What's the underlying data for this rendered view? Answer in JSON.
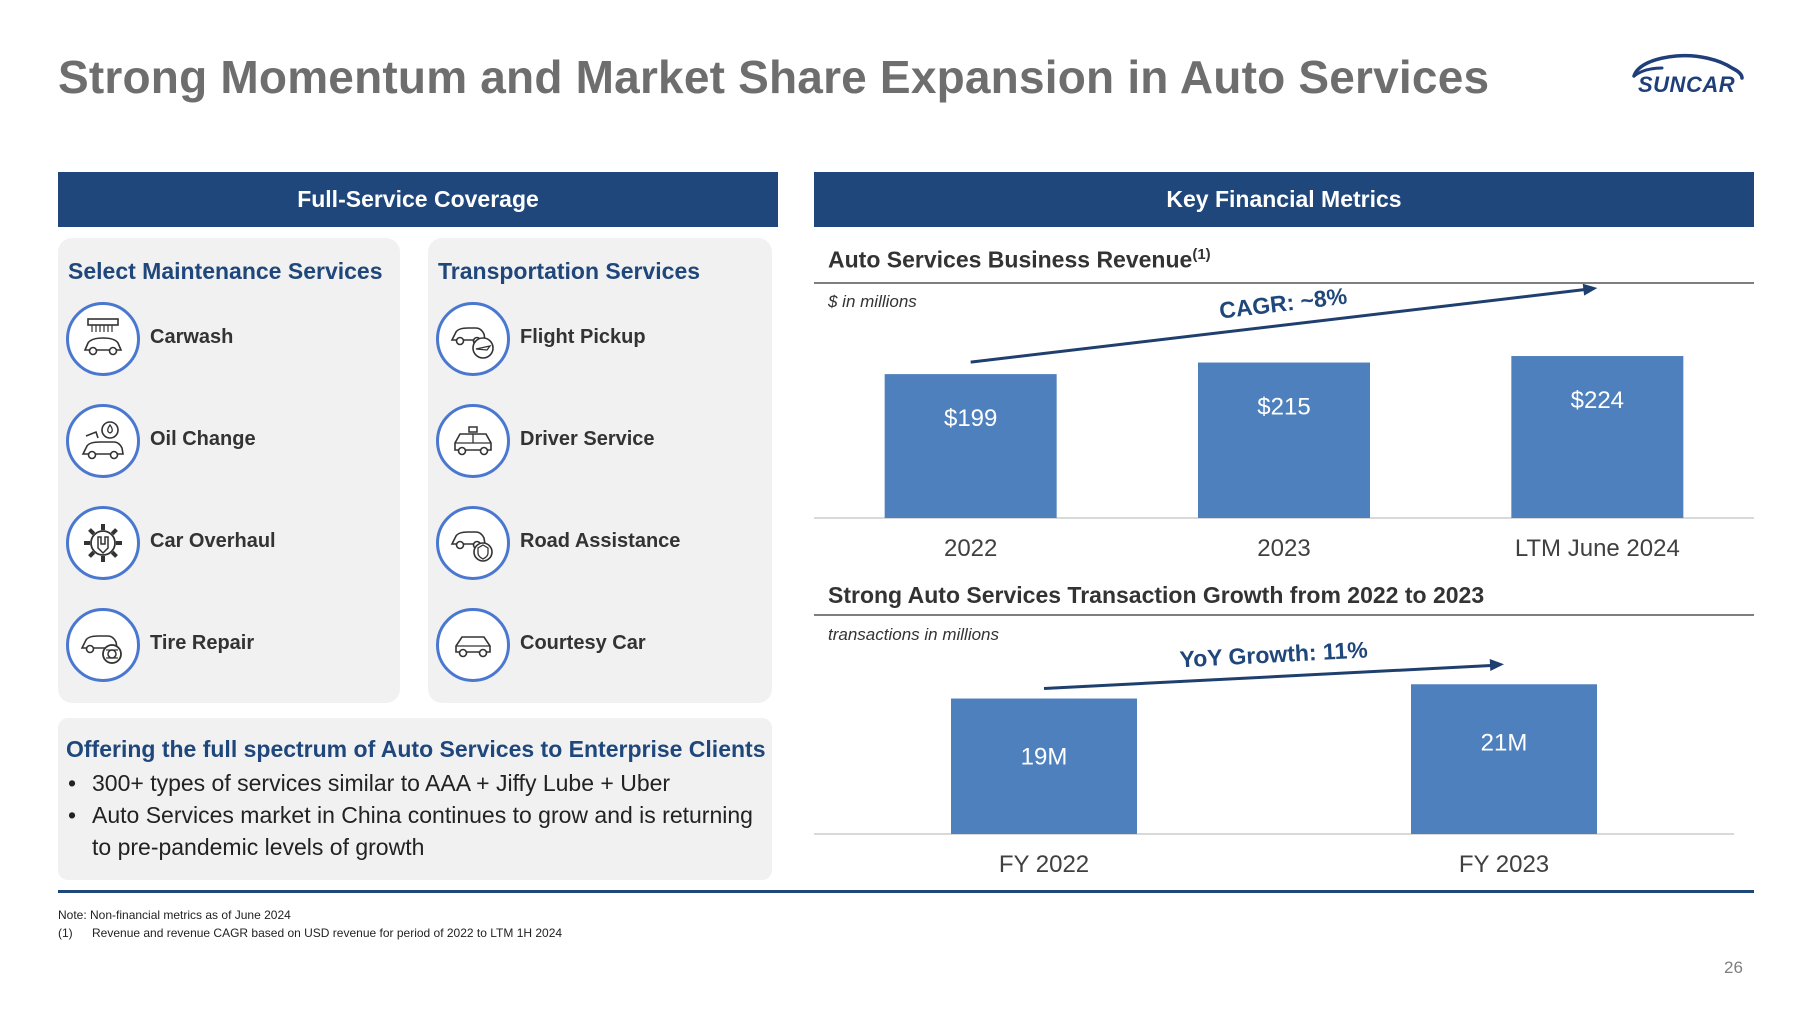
{
  "title": "Strong Momentum and Market Share Expansion in Auto Services",
  "logo": {
    "text": "SUNCAR",
    "color": "#1f3f7a"
  },
  "left_band": "Full-Service Coverage",
  "right_band": "Key Financial Metrics",
  "maintenance": {
    "heading": "Select Maintenance Services",
    "items": [
      {
        "label": "Carwash",
        "icon": "carwash-icon"
      },
      {
        "label": "Oil Change",
        "icon": "oil-change-icon"
      },
      {
        "label": "Car Overhaul",
        "icon": "gear-wrench-icon"
      },
      {
        "label": "Tire Repair",
        "icon": "tire-repair-icon"
      }
    ]
  },
  "transportation": {
    "heading": "Transportation Services",
    "items": [
      {
        "label": "Flight Pickup",
        "icon": "flight-pickup-icon"
      },
      {
        "label": "Driver Service",
        "icon": "taxi-icon"
      },
      {
        "label": "Road Assistance",
        "icon": "road-assistance-icon"
      },
      {
        "label": "Courtesy Car",
        "icon": "car-icon"
      }
    ]
  },
  "offering": {
    "title": "Offering the full spectrum of Auto Services to Enterprise Clients",
    "bullets": [
      "300+ types of services similar to AAA + Jiffy Lube + Uber",
      "Auto Services market in China continues to grow and is returning to pre-pandemic levels of growth"
    ]
  },
  "revenue_section": {
    "title": "Auto Services Business Revenue",
    "footnote_ref": "(1)",
    "subtitle": "$ in millions"
  },
  "transactions_section": {
    "title": "Strong Auto Services Transaction Growth from 2022 to 2023",
    "subtitle": "transactions in millions"
  },
  "chart_data": [
    {
      "type": "bar",
      "categories": [
        "2022",
        "2023",
        "LTM June 2024"
      ],
      "values": [
        199,
        215,
        224
      ],
      "data_labels": [
        "$199",
        "$215",
        "$224"
      ],
      "annotation": "CAGR: ~8%",
      "bar_color": "#4e80bd",
      "ylim": [
        0,
        260
      ],
      "grid": false
    },
    {
      "type": "bar",
      "categories": [
        "FY 2022",
        "FY 2023"
      ],
      "values": [
        19,
        21
      ],
      "data_labels": [
        "19M",
        "21M"
      ],
      "annotation": "YoY Growth: 11%",
      "bar_color": "#4e80bd",
      "ylim": [
        0,
        23
      ],
      "grid": false
    }
  ],
  "notes": {
    "note": "Note: Non-financial metrics as of June 2024",
    "footnote_num": "(1)",
    "footnote": "Revenue and revenue CAGR based on USD revenue for period of 2022 to LTM 1H 2024"
  },
  "page_number": "26",
  "colors": {
    "navy": "#1f477b",
    "bar": "#4e80bd",
    "icon_ring": "#4a78d0",
    "panel": "#f1f1f1"
  }
}
